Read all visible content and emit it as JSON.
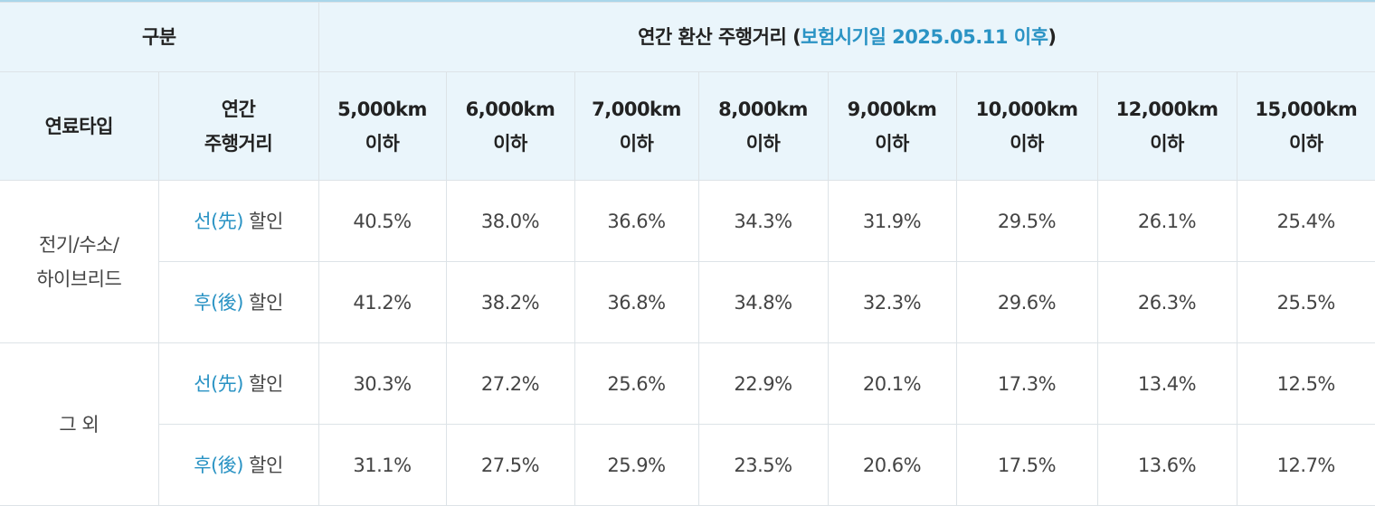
{
  "table": {
    "corner": "구분",
    "group_header": [
      "연간 환산 주행거리 (",
      "보험시기일 2025.05.11 이후",
      ")"
    ],
    "fuel_header": "연료타입",
    "distance_header": [
      "연간",
      "주행거리"
    ],
    "columns": [
      [
        "5,000km",
        "이하"
      ],
      [
        "6,000km",
        "이하"
      ],
      [
        "7,000km",
        "이하"
      ],
      [
        "8,000km",
        "이하"
      ],
      [
        "9,000km",
        "이하"
      ],
      [
        "10,000km",
        "이하"
      ],
      [
        "12,000km",
        "이하"
      ],
      [
        "15,000km",
        "이하"
      ]
    ],
    "groups": [
      {
        "label": [
          "전기/수소/",
          "하이브리드"
        ],
        "rows": [
          {
            "type": [
              "선(先)",
              "할인"
            ],
            "values": [
              "40.5%",
              "38.0%",
              "36.6%",
              "34.3%",
              "31.9%",
              "29.5%",
              "26.1%",
              "25.4%"
            ]
          },
          {
            "type": [
              "후(後)",
              "할인"
            ],
            "values": [
              "41.2%",
              "38.2%",
              "36.8%",
              "34.8%",
              "32.3%",
              "29.6%",
              "26.3%",
              "25.5%"
            ]
          }
        ]
      },
      {
        "label": [
          "그 외"
        ],
        "rows": [
          {
            "type": [
              "선(先)",
              "할인"
            ],
            "values": [
              "30.3%",
              "27.2%",
              "25.6%",
              "22.9%",
              "20.1%",
              "17.3%",
              "13.4%",
              "12.5%"
            ]
          },
          {
            "type": [
              "후(後)",
              "할인"
            ],
            "values": [
              "31.1%",
              "27.5%",
              "25.9%",
              "23.5%",
              "20.6%",
              "17.5%",
              "13.6%",
              "12.7%"
            ]
          }
        ]
      }
    ]
  }
}
